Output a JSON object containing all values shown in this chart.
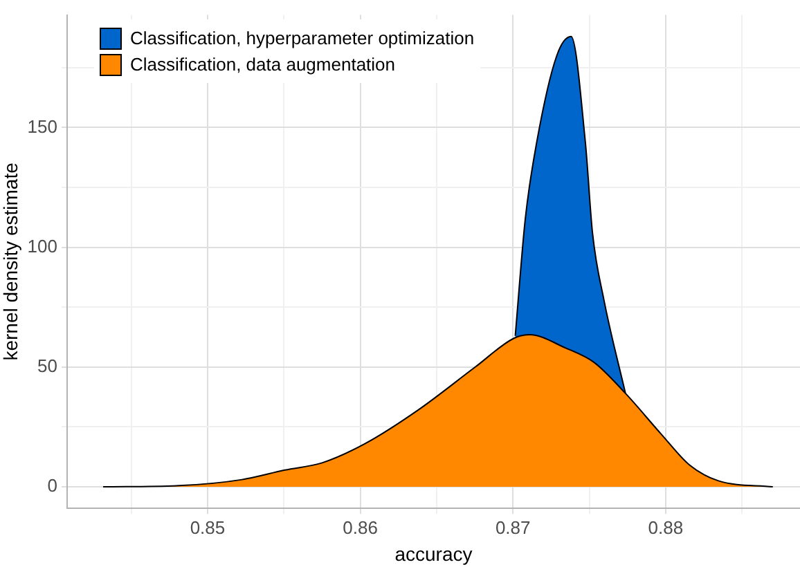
{
  "chart_data": {
    "type": "area",
    "xlabel": "accuracy",
    "ylabel": "kernel density estimate",
    "xlim": [
      0.8408,
      0.8888
    ],
    "ylim": [
      -9,
      197
    ],
    "xticks": [
      {
        "value": 0.845,
        "label": null
      },
      0.85,
      {
        "value": 0.855,
        "label": null
      },
      0.86,
      {
        "value": 0.865,
        "label": null
      },
      0.87,
      {
        "value": 0.875,
        "label": null
      },
      0.88,
      {
        "value": 0.885,
        "label": null
      }
    ],
    "yticks": [
      0,
      {
        "value": 25,
        "label": null
      },
      50,
      {
        "value": 75,
        "label": null
      },
      100,
      {
        "value": 125,
        "label": null
      },
      150,
      {
        "value": 175,
        "label": null
      }
    ],
    "grid": true,
    "legend": "top left",
    "series": [
      {
        "name": "Classification, hyperparameter optimization",
        "color": "#0066cc",
        "x": [
          0.87015,
          0.87081,
          0.87156,
          0.87287,
          0.87381,
          0.87474,
          0.87521,
          0.87596,
          0.87737
        ],
        "values": [
          63,
          112,
          144,
          180,
          188,
          144,
          106,
          78,
          39
        ]
      },
      {
        "name": "Classification, data augmentation",
        "color": "#ff8800",
        "x": [
          0.84316,
          0.84813,
          0.85225,
          0.85506,
          0.8575,
          0.86031,
          0.86378,
          0.86753,
          0.87006,
          0.87109,
          0.87343,
          0.8753,
          0.87737,
          0.87971,
          0.88158,
          0.88346,
          0.88702
        ],
        "values": [
          0,
          0.5,
          3,
          7,
          10,
          18,
          32,
          50,
          62,
          63.5,
          58,
          52,
          39,
          22,
          9,
          2.5,
          0
        ]
      }
    ]
  }
}
